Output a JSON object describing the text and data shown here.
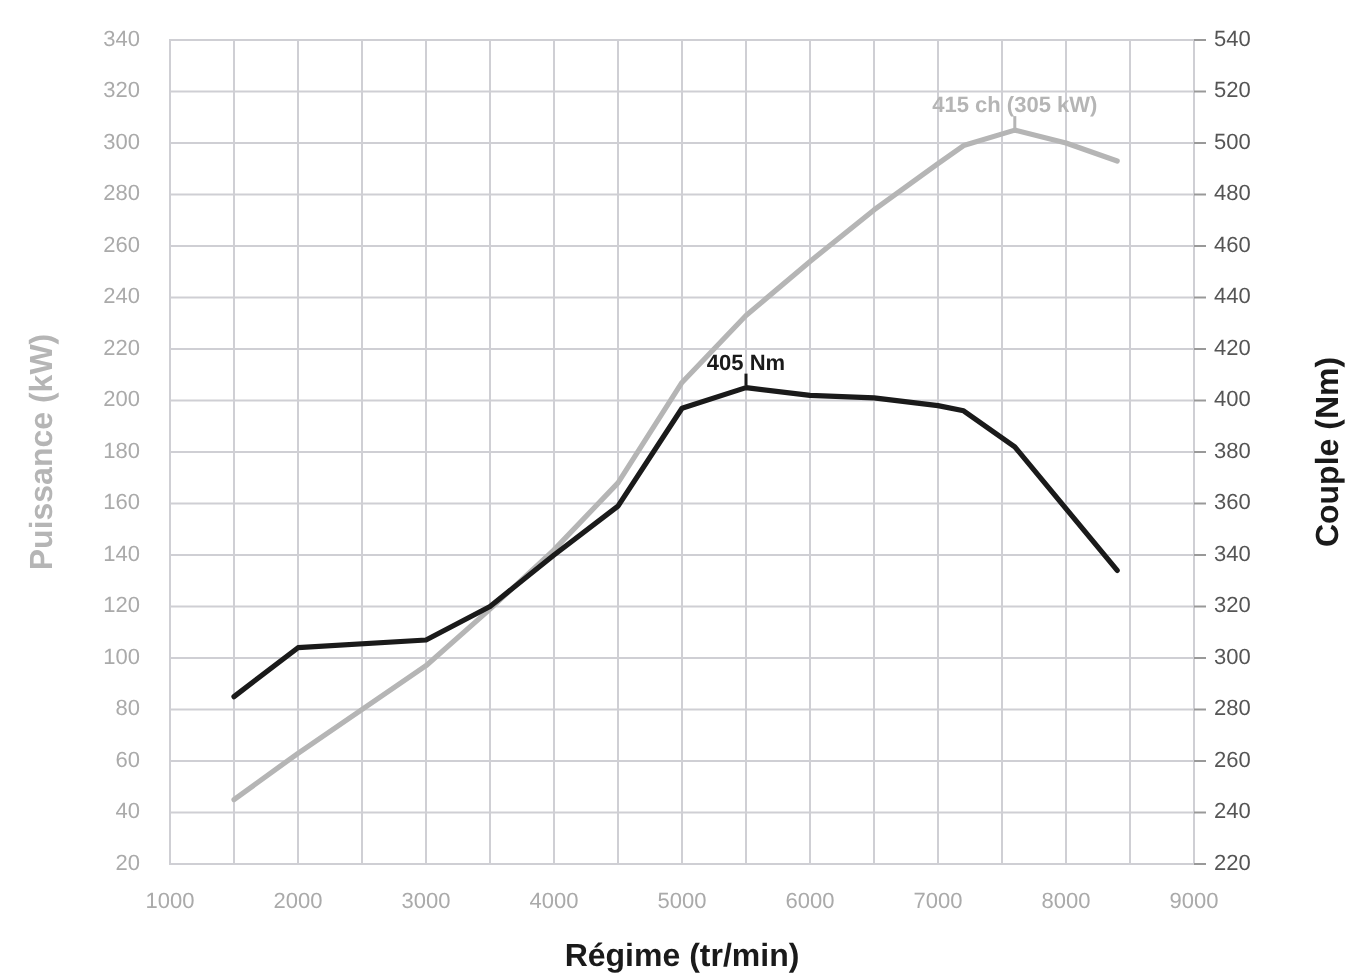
{
  "chart_data": {
    "type": "line",
    "xlabel": "Régime (tr/min)",
    "ylabel": "Puissance (kW)",
    "y2label": "Couple (Nm)",
    "xlim": [
      1000,
      9000
    ],
    "xticks": [
      1000,
      {
        "value": 1500,
        "label": null
      },
      2000,
      {
        "value": 2500,
        "label": null
      },
      3000,
      {
        "value": 3500,
        "label": null
      },
      4000,
      {
        "value": 4500,
        "label": null
      },
      5000,
      {
        "value": 5500,
        "label": null
      },
      6000,
      {
        "value": 6500,
        "label": null
      },
      7000,
      {
        "value": 7500,
        "label": null
      },
      8000,
      {
        "value": 8500,
        "label": null
      },
      9000
    ],
    "ylim": [
      20,
      340
    ],
    "yticks": [
      20,
      40,
      60,
      80,
      100,
      120,
      140,
      160,
      180,
      200,
      220,
      240,
      260,
      280,
      300,
      320,
      340
    ],
    "y2lim": [
      220,
      540
    ],
    "y2ticks": [
      220,
      240,
      260,
      280,
      300,
      320,
      340,
      360,
      380,
      400,
      420,
      440,
      460,
      480,
      500,
      520,
      540
    ],
    "grid": true,
    "marker": "none",
    "line_style": "solid",
    "series": [
      {
        "color": "#b5b5b5",
        "x": [
          1500,
          2000,
          3000,
          3500,
          4000,
          4500,
          5000,
          5500,
          6000,
          6500,
          7000,
          7200,
          7600,
          8000,
          8400
        ],
        "values": [
          45,
          63,
          97,
          119,
          142,
          168,
          207,
          233,
          254,
          274,
          292,
          299,
          305,
          300,
          293
        ]
      },
      {
        "color": "#1a1a1a",
        "axis": "y2",
        "x": [
          1500,
          2000,
          3000,
          3500,
          4000,
          4500,
          5000,
          5500,
          6000,
          6500,
          7000,
          7200,
          7600,
          8400
        ],
        "values": [
          285,
          304,
          307,
          320,
          340,
          359,
          397,
          405,
          402,
          401,
          398,
          396,
          382,
          334
        ]
      }
    ],
    "annotations": [
      {
        "text": "415 ch (305 kW)",
        "x": 7600,
        "y": 305
      },
      {
        "text": "405 Nm",
        "x": 5500,
        "y": 205
      }
    ]
  }
}
